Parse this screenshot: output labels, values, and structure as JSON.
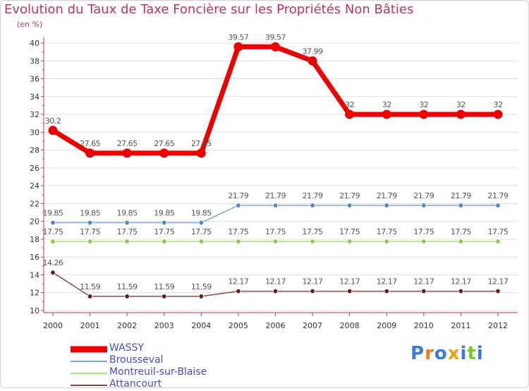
{
  "title": "Evolution du Taux de Taxe Foncière sur les Propriétés Non Bâties",
  "subtitle": "(en %)",
  "logo_text": "Proxiti",
  "colors": {
    "title": "#c0306a",
    "axis": "#c0306a",
    "grid": "#dddddd",
    "legend_text": "#4848c8"
  },
  "chart_data": {
    "type": "line",
    "title": "Evolution du Taux de Taxe Foncière sur les Propriétés Non Bâties",
    "ylabel": "(en %)",
    "xlabel": "",
    "categories": [
      "2000",
      "2001",
      "2002",
      "2003",
      "2004",
      "2005",
      "2006",
      "2007",
      "2008",
      "2009",
      "2010",
      "2011",
      "2012"
    ],
    "ylim": [
      10,
      40
    ],
    "yticks": [
      "10",
      "12",
      "14",
      "16",
      "18",
      "20",
      "22",
      "24",
      "26",
      "28",
      "30",
      "32",
      "34",
      "36",
      "38",
      "40"
    ],
    "grid": true,
    "legend": "bottom-left",
    "series": [
      {
        "name": "WASSY",
        "color": "#ee0000",
        "thick": true,
        "values": [
          30.2,
          27.65,
          27.65,
          27.65,
          27.65,
          39.57,
          39.57,
          37.99,
          32,
          32,
          32,
          32,
          32
        ],
        "labels": [
          "30.2",
          "27.65",
          "27.65",
          "27.65",
          "27.65",
          "39.57",
          "39.57",
          "37.99",
          "32",
          "32",
          "32",
          "32",
          "32"
        ]
      },
      {
        "name": "Brousseval",
        "color": "#7aa8d8",
        "marker": "#4a88c8",
        "values": [
          19.85,
          19.85,
          19.85,
          19.85,
          19.85,
          21.79,
          21.79,
          21.79,
          21.79,
          21.79,
          21.79,
          21.79,
          21.79
        ],
        "labels": [
          "19.85",
          "19.85",
          "19.85",
          "19.85",
          "19.85",
          "21.79",
          "21.79",
          "21.79",
          "21.79",
          "21.79",
          "21.79",
          "21.79",
          "21.79"
        ]
      },
      {
        "name": "Montreuil-sur-Blaise",
        "color": "#a8e070",
        "marker": "#88cc44",
        "values": [
          17.75,
          17.75,
          17.75,
          17.75,
          17.75,
          17.75,
          17.75,
          17.75,
          17.75,
          17.75,
          17.75,
          17.75,
          17.75
        ],
        "labels": [
          "17.75",
          "17.75",
          "17.75",
          "17.75",
          "17.75",
          "17.75",
          "17.75",
          "17.75",
          "17.75",
          "17.75",
          "17.75",
          "17.75",
          "17.75"
        ]
      },
      {
        "name": "Attancourt",
        "color": "#8a4a4a",
        "marker": "#6a1a1a",
        "values": [
          14.26,
          11.59,
          11.59,
          11.59,
          11.59,
          12.17,
          12.17,
          12.17,
          12.17,
          12.17,
          12.17,
          12.17,
          12.17
        ],
        "labels": [
          "14.26",
          "11.59",
          "11.59",
          "11.59",
          "11.59",
          "12.17",
          "12.17",
          "12.17",
          "12.17",
          "12.17",
          "12.17",
          "12.17",
          "12.17"
        ]
      }
    ]
  }
}
